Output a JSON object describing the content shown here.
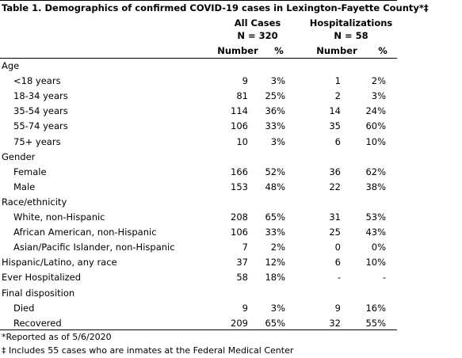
{
  "title": "Table 1. Demographics of confirmed COVID-19 cases in Lexington-Fayette County*‡",
  "groups": [
    {
      "name": "All Cases",
      "n": "N = 320"
    },
    {
      "name": "Hospitalizations",
      "n": "N = 58"
    }
  ],
  "columns": [
    "Number",
    "%",
    "Number",
    "%"
  ],
  "rows": [
    {
      "label": "Age"
    },
    {
      "label": "<18 years",
      "indent": true,
      "cells": [
        "9",
        "3%",
        "1",
        "2%"
      ]
    },
    {
      "label": "18-34 years",
      "indent": true,
      "cells": [
        "81",
        "25%",
        "2",
        "3%"
      ]
    },
    {
      "label": "35-54 years",
      "indent": true,
      "cells": [
        "114",
        "36%",
        "14",
        "24%"
      ]
    },
    {
      "label": "55-74 years",
      "indent": true,
      "cells": [
        "106",
        "33%",
        "35",
        "60%"
      ]
    },
    {
      "label": "75+ years",
      "indent": true,
      "cells": [
        "10",
        "3%",
        "6",
        "10%"
      ]
    },
    {
      "label": "Gender"
    },
    {
      "label": "Female",
      "indent": true,
      "cells": [
        "166",
        "52%",
        "36",
        "62%"
      ]
    },
    {
      "label": "Male",
      "indent": true,
      "cells": [
        "153",
        "48%",
        "22",
        "38%"
      ]
    },
    {
      "label": "Race/ethnicity"
    },
    {
      "label": "White, non-Hispanic",
      "indent": true,
      "cells": [
        "208",
        "65%",
        "31",
        "53%"
      ]
    },
    {
      "label": "African American, non-Hispanic",
      "indent": true,
      "cells": [
        "106",
        "33%",
        "25",
        "43%"
      ]
    },
    {
      "label": "Asian/Pacific Islander, non-Hispanic",
      "indent": true,
      "cells": [
        "7",
        "2%",
        "0",
        "0%"
      ]
    },
    {
      "label": "Hispanic/Latino, any race",
      "cells": [
        "37",
        "12%",
        "6",
        "10%"
      ]
    },
    {
      "label": "Ever Hospitalized",
      "cells": [
        "58",
        "18%",
        "-",
        "-"
      ]
    },
    {
      "label": "Final disposition"
    },
    {
      "label": "Died",
      "indent": true,
      "cells": [
        "9",
        "3%",
        "9",
        "16%"
      ]
    },
    {
      "label": "Recovered",
      "indent": true,
      "cells": [
        "209",
        "65%",
        "32",
        "55%"
      ]
    }
  ],
  "footnotes": [
    "*Reported as of 5/6/2020",
    "‡ Includes 55 cases who are inmates at the Federal Medical Center"
  ]
}
